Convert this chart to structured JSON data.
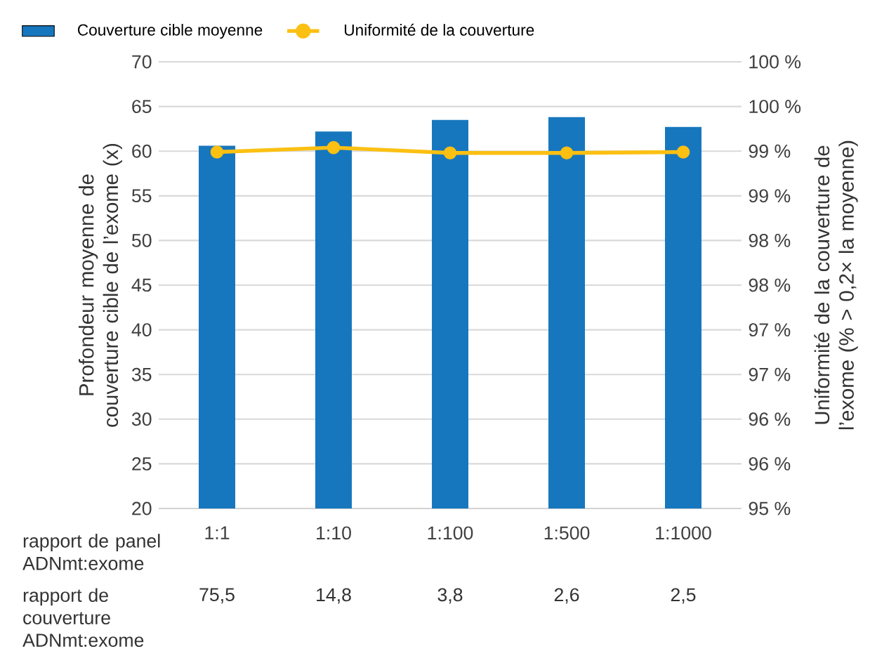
{
  "chart_data": {
    "type": "bar",
    "xlabel": "rapport de panel ADNmt:exome",
    "ylabel": "Profondeur moyenne de couverture cible de l’exome (x)",
    "y2label": "Uniformité de la couverture de l’exome (% > 0,2× la moyenne)",
    "categories": [
      "1:1",
      "1:10",
      "1:100",
      "1:500",
      "1:1000"
    ],
    "series": [
      {
        "name": "Couverture cible moyenne",
        "color": "#1777be",
        "values": [
          60.6,
          62.2,
          63.5,
          63.8,
          62.7
        ]
      },
      {
        "name": "Uniformité de la couverture",
        "type": "line",
        "axis": "y2",
        "color": "#fbc012",
        "marker": "circle",
        "line_style": "solid",
        "values": [
          98.99,
          99.04,
          98.98,
          98.98,
          98.99
        ]
      }
    ],
    "ylim": [
      20,
      70
    ],
    "yticks": [
      20,
      25,
      30,
      35,
      40,
      45,
      50,
      55,
      60,
      65,
      70
    ],
    "y2lim": [
      95,
      100
    ],
    "y2ticks": [
      {
        "value": 95,
        "label": "95 %"
      },
      {
        "value": 95.5,
        "label": "96 %"
      },
      {
        "value": 96,
        "label": "96 %"
      },
      {
        "value": 96.5,
        "label": "97 %"
      },
      {
        "value": 97,
        "label": "97 %"
      },
      {
        "value": 97.5,
        "label": "98 %"
      },
      {
        "value": 98,
        "label": "98 %"
      },
      {
        "value": 98.5,
        "label": "99 %"
      },
      {
        "value": 99,
        "label": "99 %"
      },
      {
        "value": 99.5,
        "label": "100 %"
      },
      {
        "value": 100,
        "label": "100 %"
      }
    ],
    "grid": "y",
    "legend": "top left",
    "annotations": [
      "rapport de couverture ADNmt:exome",
      "75,5",
      "14,8",
      "3,8",
      "2,6",
      "2,5"
    ]
  }
}
